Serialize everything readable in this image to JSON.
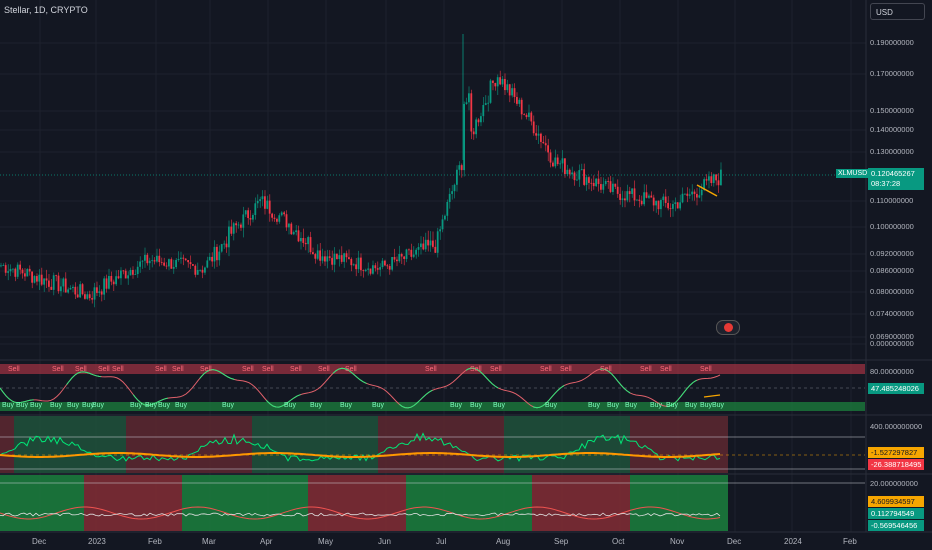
{
  "header": {
    "title": "Stellar, 1D, CRYPTO",
    "currency": "USD"
  },
  "price_axis": {
    "labels": [
      "0.190000000",
      "0.170000000",
      "0.150000000",
      "0.140000000",
      "0.130000000",
      "0.110000000",
      "0.100000000",
      "0.092000000",
      "0.086000000",
      "0.080000000",
      "0.074000000",
      "0.069000000",
      "0.000000000"
    ]
  },
  "price_tag": {
    "symbol": "XLMUSD",
    "price": "0.120465267",
    "countdown": "08:37:28"
  },
  "osc1": {
    "level": "80.00000000",
    "value": "47.485248026",
    "sell_label": "Sell",
    "buy_label": "Buy"
  },
  "osc2": {
    "level": "400.000000000",
    "value1": "-1.527297827",
    "value2": "-26.388718495"
  },
  "osc3": {
    "level": "20.000000000",
    "value1": "4.609934597",
    "value2": "0.112794549",
    "value3": "-0.569546456"
  },
  "time_axis": [
    "Dec",
    "2023",
    "Feb",
    "Mar",
    "Apr",
    "May",
    "Jun",
    "Jul",
    "Aug",
    "Sep",
    "Oct",
    "Nov",
    "Dec",
    "2024",
    "Feb"
  ],
  "colors": {
    "up": "#089981",
    "down": "#f23645",
    "bg": "#131722"
  },
  "chart_data": {
    "type": "candlestick",
    "x": [
      "Dec",
      "2023",
      "Feb",
      "Mar",
      "Apr",
      "May",
      "Jun",
      "Jul",
      "Aug",
      "Sep",
      "Oct",
      "Nov",
      "Dec"
    ],
    "values": [
      0.088,
      0.079,
      0.09,
      0.087,
      0.11,
      0.092,
      0.087,
      0.095,
      0.17,
      0.126,
      0.114,
      0.108,
      0.12
    ],
    "ylabel": "",
    "ylim": [
      0.069,
      0.19
    ]
  }
}
